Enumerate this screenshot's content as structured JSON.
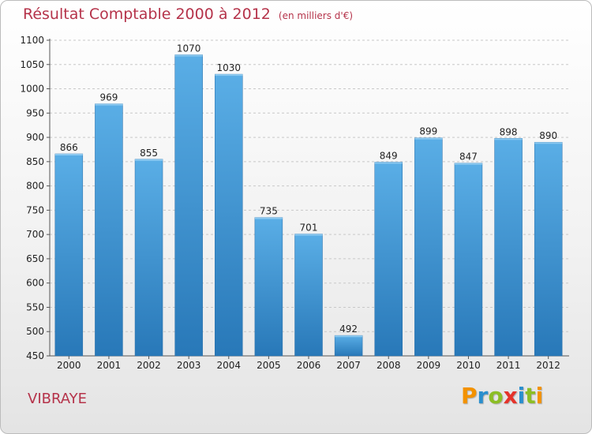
{
  "header": {
    "title": "Résultat Comptable 2000 à 2012",
    "subtitle": "(en milliers d'€)"
  },
  "footer": {
    "commune": "VIBRAYE",
    "brand_letters": [
      {
        "ch": "P",
        "color": "#f39200"
      },
      {
        "ch": "r",
        "color": "#2a8fce"
      },
      {
        "ch": "o",
        "color": "#8cbe25"
      },
      {
        "ch": "x",
        "color": "#e5332a"
      },
      {
        "ch": "i",
        "color": "#2a8fce"
      },
      {
        "ch": "t",
        "color": "#8cbe25"
      },
      {
        "ch": "i",
        "color": "#f39200"
      }
    ]
  },
  "colors": {
    "bar_light": "#5aaee6",
    "bar_dark": "#2878b8",
    "title": "#b5334a"
  },
  "chart_data": {
    "type": "bar",
    "categories": [
      "2000",
      "2001",
      "2002",
      "2003",
      "2004",
      "2005",
      "2006",
      "2007",
      "2008",
      "2009",
      "2010",
      "2011",
      "2012"
    ],
    "values": [
      866,
      969,
      855,
      1070,
      1030,
      735,
      701,
      492,
      849,
      899,
      847,
      898,
      890
    ],
    "ylim": [
      450,
      1100
    ],
    "yticks": [
      450,
      500,
      550,
      600,
      650,
      700,
      750,
      800,
      850,
      900,
      950,
      1000,
      1050,
      1100
    ],
    "grid": "horizontal dashed",
    "legend": "none"
  }
}
